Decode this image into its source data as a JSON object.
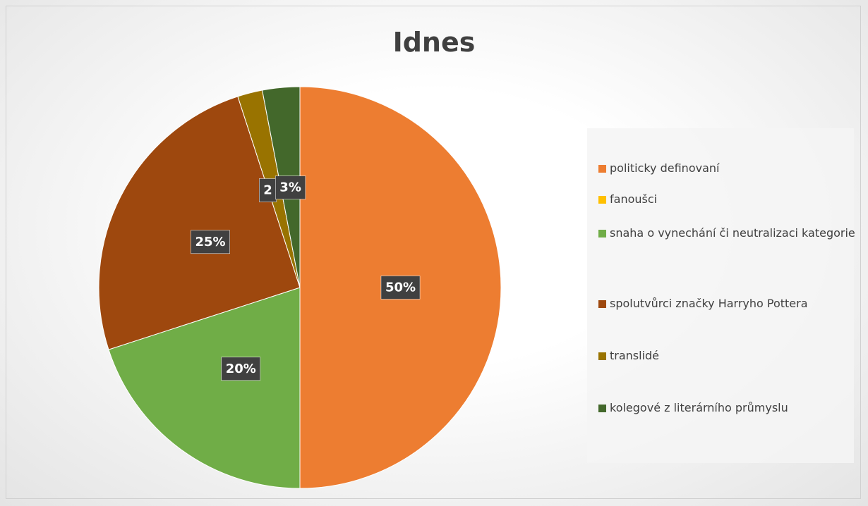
{
  "chart_data": {
    "type": "pie",
    "title": "Idnes",
    "categories": [
      "politicky definovaní",
      "fanoušci",
      "snaha o vynechání či neutralizaci kategorie",
      "spolutvůrci značky Harryho Pottera",
      "translidé",
      "kolegové z literárního průmyslu"
    ],
    "values": [
      50,
      0,
      20,
      25,
      2,
      3
    ],
    "value_labels": [
      "50%",
      null,
      "20%",
      "25%",
      "2",
      "3%"
    ],
    "colors": [
      "#ed7d31",
      "#ffc000",
      "#70ad47",
      "#9e480e",
      "#997300",
      "#43682b"
    ],
    "legend": "right"
  }
}
